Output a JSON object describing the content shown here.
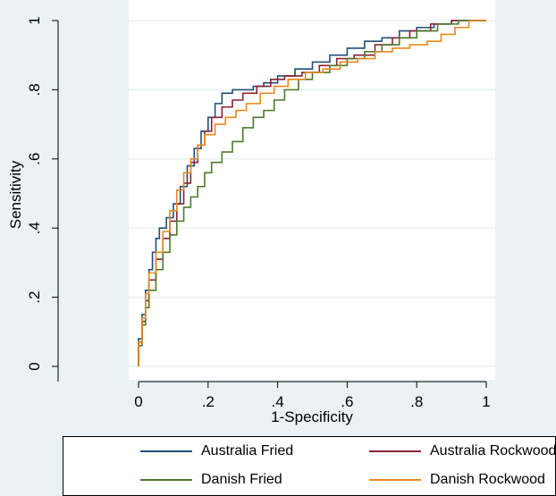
{
  "chart_data": {
    "type": "line",
    "xlabel": "1-Specificity",
    "ylabel": "Sensitivity",
    "xlim": [
      0,
      1
    ],
    "ylim": [
      0,
      1
    ],
    "x_ticks": [
      "0",
      ".2",
      ".4",
      ".6",
      ".8",
      "1"
    ],
    "y_ticks": [
      "0",
      ".2",
      ".4",
      ".6",
      ".8",
      "1"
    ],
    "grid": true,
    "legend_position": "bottom",
    "series": [
      {
        "name": "Australia Fried",
        "color": "#1f4e79",
        "points": [
          [
            0,
            0
          ],
          [
            0,
            0.08
          ],
          [
            0.01,
            0.15
          ],
          [
            0.02,
            0.22
          ],
          [
            0.03,
            0.28
          ],
          [
            0.04,
            0.33
          ],
          [
            0.05,
            0.37
          ],
          [
            0.06,
            0.4
          ],
          [
            0.08,
            0.43
          ],
          [
            0.1,
            0.47
          ],
          [
            0.12,
            0.52
          ],
          [
            0.14,
            0.58
          ],
          [
            0.16,
            0.63
          ],
          [
            0.18,
            0.68
          ],
          [
            0.2,
            0.72
          ],
          [
            0.22,
            0.76
          ],
          [
            0.24,
            0.79
          ],
          [
            0.27,
            0.8
          ],
          [
            0.3,
            0.8
          ],
          [
            0.33,
            0.81
          ],
          [
            0.36,
            0.82
          ],
          [
            0.4,
            0.84
          ],
          [
            0.45,
            0.86
          ],
          [
            0.5,
            0.88
          ],
          [
            0.55,
            0.9
          ],
          [
            0.6,
            0.92
          ],
          [
            0.65,
            0.94
          ],
          [
            0.7,
            0.95
          ],
          [
            0.75,
            0.97
          ],
          [
            0.8,
            0.98
          ],
          [
            0.85,
            0.99
          ],
          [
            0.9,
            1.0
          ],
          [
            1,
            1
          ]
        ]
      },
      {
        "name": "Australia Rockwood",
        "color": "#8b2232",
        "points": [
          [
            0,
            0
          ],
          [
            0,
            0.07
          ],
          [
            0.01,
            0.13
          ],
          [
            0.02,
            0.19
          ],
          [
            0.03,
            0.25
          ],
          [
            0.05,
            0.31
          ],
          [
            0.07,
            0.37
          ],
          [
            0.09,
            0.42
          ],
          [
            0.11,
            0.47
          ],
          [
            0.13,
            0.53
          ],
          [
            0.15,
            0.59
          ],
          [
            0.17,
            0.64
          ],
          [
            0.19,
            0.68
          ],
          [
            0.21,
            0.72
          ],
          [
            0.24,
            0.75
          ],
          [
            0.27,
            0.77
          ],
          [
            0.3,
            0.79
          ],
          [
            0.34,
            0.81
          ],
          [
            0.38,
            0.83
          ],
          [
            0.42,
            0.84
          ],
          [
            0.47,
            0.85
          ],
          [
            0.52,
            0.87
          ],
          [
            0.57,
            0.89
          ],
          [
            0.62,
            0.9
          ],
          [
            0.68,
            0.93
          ],
          [
            0.73,
            0.95
          ],
          [
            0.78,
            0.97
          ],
          [
            0.84,
            0.99
          ],
          [
            0.9,
            1.0
          ],
          [
            1,
            1
          ]
        ]
      },
      {
        "name": "Danish Fried",
        "color": "#4d7a2a",
        "points": [
          [
            0,
            0
          ],
          [
            0,
            0.06
          ],
          [
            0.01,
            0.12
          ],
          [
            0.02,
            0.17
          ],
          [
            0.03,
            0.22
          ],
          [
            0.05,
            0.28
          ],
          [
            0.07,
            0.33
          ],
          [
            0.09,
            0.38
          ],
          [
            0.11,
            0.42
          ],
          [
            0.13,
            0.46
          ],
          [
            0.15,
            0.49
          ],
          [
            0.17,
            0.52
          ],
          [
            0.19,
            0.56
          ],
          [
            0.21,
            0.59
          ],
          [
            0.24,
            0.62
          ],
          [
            0.27,
            0.65
          ],
          [
            0.3,
            0.69
          ],
          [
            0.33,
            0.72
          ],
          [
            0.36,
            0.74
          ],
          [
            0.39,
            0.77
          ],
          [
            0.42,
            0.8
          ],
          [
            0.46,
            0.83
          ],
          [
            0.5,
            0.85
          ],
          [
            0.55,
            0.87
          ],
          [
            0.6,
            0.89
          ],
          [
            0.65,
            0.91
          ],
          [
            0.7,
            0.93
          ],
          [
            0.75,
            0.95
          ],
          [
            0.8,
            0.97
          ],
          [
            0.86,
            0.99
          ],
          [
            0.92,
            1.0
          ],
          [
            1,
            1
          ]
        ]
      },
      {
        "name": "Danish Rockwood",
        "color": "#e8891d",
        "points": [
          [
            0,
            0
          ],
          [
            0,
            0.07
          ],
          [
            0.01,
            0.14
          ],
          [
            0.02,
            0.21
          ],
          [
            0.03,
            0.27
          ],
          [
            0.05,
            0.33
          ],
          [
            0.07,
            0.39
          ],
          [
            0.09,
            0.45
          ],
          [
            0.11,
            0.51
          ],
          [
            0.13,
            0.56
          ],
          [
            0.15,
            0.6
          ],
          [
            0.17,
            0.64
          ],
          [
            0.19,
            0.67
          ],
          [
            0.22,
            0.7
          ],
          [
            0.25,
            0.72
          ],
          [
            0.28,
            0.74
          ],
          [
            0.31,
            0.76
          ],
          [
            0.35,
            0.79
          ],
          [
            0.39,
            0.81
          ],
          [
            0.43,
            0.83
          ],
          [
            0.48,
            0.85
          ],
          [
            0.53,
            0.86
          ],
          [
            0.58,
            0.88
          ],
          [
            0.63,
            0.89
          ],
          [
            0.68,
            0.91
          ],
          [
            0.73,
            0.92
          ],
          [
            0.78,
            0.93
          ],
          [
            0.83,
            0.94
          ],
          [
            0.87,
            0.96
          ],
          [
            0.91,
            0.98
          ],
          [
            0.95,
            1.0
          ],
          [
            1,
            1
          ]
        ]
      }
    ]
  }
}
